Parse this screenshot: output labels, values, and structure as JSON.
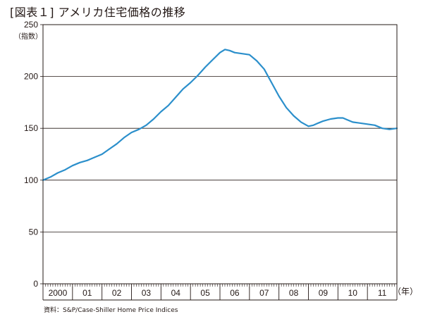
{
  "chart_data": {
    "type": "line",
    "title": "[図表１] アメリカ住宅価格の推移",
    "ylabel": "（指数）",
    "xlabel": "",
    "x_unit": "（年）",
    "source": "資料：S&P/Case-Shiller Home Price Indices",
    "ylim": [
      0,
      250
    ],
    "yticks": [
      0,
      50,
      100,
      150,
      200,
      250
    ],
    "x_range": [
      2000,
      2012
    ],
    "x_tick_labels": [
      {
        "label": "2000",
        "year": 2000
      },
      {
        "label": "01",
        "year": 2001
      },
      {
        "label": "02",
        "year": 2002
      },
      {
        "label": "03",
        "year": 2003
      },
      {
        "label": "04",
        "year": 2004
      },
      {
        "label": "05",
        "year": 2005
      },
      {
        "label": "06",
        "year": 2006
      },
      {
        "label": "07",
        "year": 2007
      },
      {
        "label": "08",
        "year": 2008
      },
      {
        "label": "09",
        "year": 2009
      },
      {
        "label": "10",
        "year": 2010
      },
      {
        "label": "11",
        "year": 2011
      }
    ],
    "grid": true,
    "line_color": "#2b8fcb",
    "series": [
      {
        "x": [
          2000.0,
          2000.25,
          2000.5,
          2000.75,
          2001.0,
          2001.25,
          2001.5,
          2001.75,
          2002.0,
          2002.25,
          2002.5,
          2002.75,
          2003.0,
          2003.25,
          2003.5,
          2003.75,
          2004.0,
          2004.25,
          2004.5,
          2004.75,
          2005.0,
          2005.25,
          2005.5,
          2005.75,
          2006.0,
          2006.17,
          2006.33,
          2006.5,
          2006.75,
          2007.0,
          2007.25,
          2007.5,
          2007.75,
          2008.0,
          2008.25,
          2008.5,
          2008.75,
          2009.0,
          2009.17,
          2009.33,
          2009.5,
          2009.75,
          2010.0,
          2010.17,
          2010.33,
          2010.5,
          2010.75,
          2011.0,
          2011.25,
          2011.5,
          2011.75,
          2012.0
        ],
        "values": [
          100,
          103,
          107,
          110,
          114,
          117,
          119,
          122,
          125,
          130,
          135,
          141,
          146,
          149,
          153,
          159,
          166,
          172,
          180,
          188,
          194,
          201,
          209,
          216,
          223,
          226,
          225,
          223,
          222,
          221,
          215,
          207,
          194,
          181,
          170,
          162,
          156,
          152,
          153,
          155,
          157,
          159,
          160,
          160,
          158,
          156,
          155,
          154,
          153,
          150,
          149,
          150
        ]
      }
    ]
  }
}
